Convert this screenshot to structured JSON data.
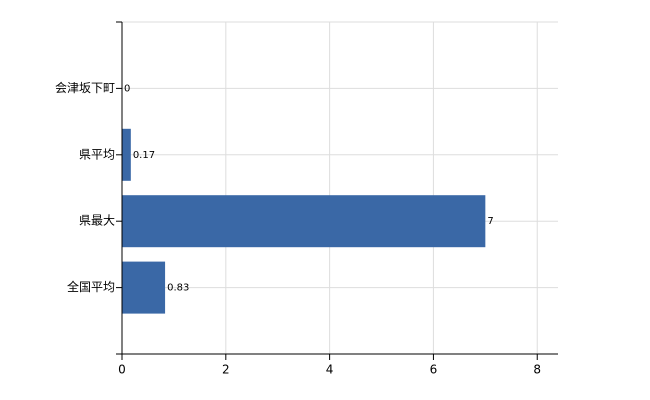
{
  "chart_data": {
    "type": "barh",
    "categories": [
      "会津坂下町",
      "県平均",
      "県最大",
      "全国平均"
    ],
    "values": [
      0,
      0.17,
      7,
      0.83
    ],
    "color": "#3a68a6",
    "xlim": [
      0,
      8.4
    ],
    "xticks": [
      0,
      2,
      4,
      6,
      8
    ],
    "grid": true
  }
}
